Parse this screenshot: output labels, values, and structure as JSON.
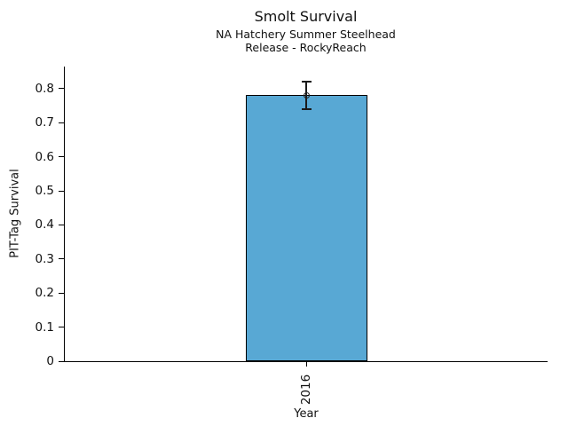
{
  "chart_data": {
    "type": "bar",
    "title": "Smolt Survival",
    "subtitle_lines": [
      "NA Hatchery Summer Steelhead",
      "Release - RockyReach"
    ],
    "xlabel": "Year",
    "ylabel": "PIT-Tag Survival",
    "categories": [
      "2016"
    ],
    "values": [
      0.78
    ],
    "error_low": [
      0.74
    ],
    "error_high": [
      0.82
    ],
    "ylim": [
      0,
      0.865
    ],
    "ytick_values": [
      0,
      0.1,
      0.2,
      0.3,
      0.4,
      0.5,
      0.6,
      0.7,
      0.8
    ],
    "ytick_labels": [
      "0",
      "0.1",
      "0.2",
      "0.3",
      "0.4",
      "0.5",
      "0.6",
      "0.7",
      "0.8"
    ],
    "legend": "none",
    "grid": "off",
    "marker": "open-circle",
    "bar_color": "#58A8D4",
    "bar_edge_color": "#000000",
    "errorbar_color": "#1a1a1a",
    "background_color": "#ffffff"
  }
}
